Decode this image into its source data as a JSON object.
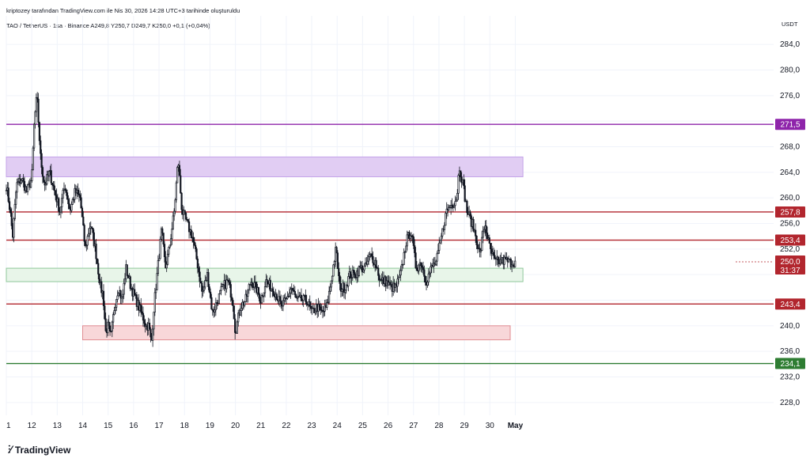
{
  "header": {
    "credit": "kriptozey tarafından TradingView.com ile Nis 30, 2026 14:28 UTC+3 tarihinde oluşturuldu",
    "symbol_line": "TAO / TetherUS · 1sa · Binance  A249,8  Y250,7  D249,7  K250,0  +0,1 (+0,04%)"
  },
  "footer": {
    "brand": "TradingView"
  },
  "chart_data": {
    "type": "candlestick",
    "symbol": "TAO / TetherUS",
    "interval": "1sa",
    "exchange": "Binance",
    "currency_unit": "USDT",
    "ohlc_header": {
      "open": 249.8,
      "high": 250.7,
      "low": 249.7,
      "close": 250.0,
      "change": 0.1,
      "change_pct": 0.04
    },
    "y_axis": {
      "range": [
        226.0,
        286.0
      ],
      "ticks": [
        228.0,
        232.0,
        236.0,
        240.0,
        244.0,
        248.0,
        252.0,
        256.0,
        260.0,
        264.0,
        268.0,
        272.0,
        276.0,
        280.0,
        284.0
      ],
      "tick_labels": [
        "228,0",
        "232,0",
        "236,0",
        "240,0",
        "",
        "",
        "252,0",
        "256,0",
        "260,0",
        "264,0",
        "268,0",
        "",
        "276,0",
        "280,0",
        "284,0"
      ]
    },
    "x_axis": {
      "range": [
        1,
        31.15
      ],
      "tick_values": [
        1,
        2,
        3,
        4,
        5,
        6,
        7,
        8,
        9,
        10,
        11,
        12,
        13,
        14,
        15,
        16,
        17,
        18,
        19,
        20,
        21
      ],
      "tick_labels": [
        "1",
        "12",
        "13",
        "14",
        "15",
        "16",
        "17",
        "18",
        "19",
        "20",
        "21",
        "22",
        "23",
        "24",
        "25",
        "26",
        "27",
        "28",
        "29",
        "30",
        "May"
      ]
    },
    "grid": true,
    "path_points": [
      [
        1.0,
        262
      ],
      [
        1.15,
        258
      ],
      [
        1.25,
        254
      ],
      [
        1.4,
        262
      ],
      [
        1.6,
        263
      ],
      [
        1.8,
        261
      ],
      [
        2.0,
        263
      ],
      [
        2.1,
        272
      ],
      [
        2.2,
        276
      ],
      [
        2.35,
        266
      ],
      [
        2.5,
        262
      ],
      [
        2.7,
        264
      ],
      [
        2.9,
        261
      ],
      [
        3.1,
        258
      ],
      [
        3.3,
        262
      ],
      [
        3.5,
        258
      ],
      [
        3.7,
        261
      ],
      [
        3.9,
        260
      ],
      [
        4.1,
        252
      ],
      [
        4.3,
        256
      ],
      [
        4.5,
        252
      ],
      [
        4.7,
        246
      ],
      [
        4.8,
        245
      ],
      [
        4.9,
        239
      ],
      [
        5.0,
        240
      ],
      [
        5.1,
        238
      ],
      [
        5.25,
        243
      ],
      [
        5.4,
        246
      ],
      [
        5.55,
        244
      ],
      [
        5.7,
        249
      ],
      [
        5.9,
        246
      ],
      [
        6.1,
        244
      ],
      [
        6.3,
        242
      ],
      [
        6.5,
        240
      ],
      [
        6.6,
        240
      ],
      [
        6.7,
        237
      ],
      [
        6.8,
        243
      ],
      [
        6.95,
        249
      ],
      [
        7.1,
        255
      ],
      [
        7.25,
        249
      ],
      [
        7.4,
        252
      ],
      [
        7.6,
        258
      ],
      [
        7.75,
        266
      ],
      [
        7.9,
        258
      ],
      [
        8.1,
        256
      ],
      [
        8.3,
        254
      ],
      [
        8.5,
        250
      ],
      [
        8.7,
        245
      ],
      [
        8.9,
        248
      ],
      [
        9.1,
        242
      ],
      [
        9.3,
        244
      ],
      [
        9.5,
        246
      ],
      [
        9.7,
        247
      ],
      [
        9.9,
        244
      ],
      [
        10.0,
        239
      ],
      [
        10.2,
        243
      ],
      [
        10.4,
        244
      ],
      [
        10.6,
        247
      ],
      [
        10.8,
        246
      ],
      [
        11.0,
        244
      ],
      [
        11.2,
        247
      ],
      [
        11.4,
        246
      ],
      [
        11.6,
        245
      ],
      [
        11.8,
        243
      ],
      [
        12.0,
        244
      ],
      [
        12.2,
        246
      ],
      [
        12.4,
        244
      ],
      [
        12.6,
        244
      ],
      [
        12.8,
        244
      ],
      [
        13.0,
        242
      ],
      [
        13.2,
        243
      ],
      [
        13.4,
        242
      ],
      [
        13.6,
        243
      ],
      [
        13.8,
        248
      ],
      [
        13.95,
        252
      ],
      [
        14.1,
        246
      ],
      [
        14.3,
        246
      ],
      [
        14.5,
        248
      ],
      [
        14.7,
        248
      ],
      [
        14.9,
        249
      ],
      [
        15.1,
        249
      ],
      [
        15.3,
        251
      ],
      [
        15.5,
        250
      ],
      [
        15.7,
        247
      ],
      [
        15.9,
        247
      ],
      [
        16.1,
        246
      ],
      [
        16.3,
        246
      ],
      [
        16.5,
        248
      ],
      [
        16.7,
        253
      ],
      [
        16.9,
        255
      ],
      [
        17.1,
        249
      ],
      [
        17.3,
        250
      ],
      [
        17.5,
        247
      ],
      [
        17.7,
        249
      ],
      [
        17.9,
        250
      ],
      [
        18.1,
        254
      ],
      [
        18.3,
        258
      ],
      [
        18.5,
        259
      ],
      [
        18.7,
        260
      ],
      [
        18.8,
        265
      ],
      [
        18.95,
        262
      ],
      [
        19.1,
        258
      ],
      [
        19.3,
        256
      ],
      [
        19.45,
        254
      ],
      [
        19.6,
        251
      ],
      [
        19.8,
        256
      ],
      [
        20.0,
        252
      ],
      [
        20.2,
        250
      ],
      [
        20.35,
        250
      ],
      [
        20.6,
        250.2
      ],
      [
        20.8,
        249.9
      ],
      [
        21.0,
        250.0
      ]
    ],
    "horizontal_levels": [
      {
        "value": 271.5,
        "label": "271,5",
        "color": "#8e24aa"
      },
      {
        "value": 257.8,
        "label": "257,8",
        "color": "#b2262e"
      },
      {
        "value": 253.4,
        "label": "253,4",
        "color": "#b2262e"
      },
      {
        "value": 243.4,
        "label": "243,4",
        "color": "#b2262e"
      },
      {
        "value": 234.1,
        "label": "234,1",
        "color": "#2e7d32"
      }
    ],
    "zones": [
      {
        "name": "resistance-zone",
        "from_x": 1,
        "to_x": 21.3,
        "y_low": 263.3,
        "y_high": 266.4,
        "fill": "#e1cdf3",
        "stroke": "#c4a3e8"
      },
      {
        "name": "support-zone-green",
        "from_x": 1,
        "to_x": 21.3,
        "y_low": 246.9,
        "y_high": 249.0,
        "fill": "#e8f5e9",
        "stroke": "#8fc79a"
      },
      {
        "name": "demand-zone-red",
        "from_x": 4.0,
        "to_x": 20.8,
        "y_low": 237.8,
        "y_high": 240.0,
        "fill": "#f8d7d9",
        "stroke": "#e08d93"
      }
    ],
    "current_price": {
      "value": 250.0,
      "label": "250,0",
      "countdown": "31:37",
      "color": "#b2262e"
    }
  }
}
